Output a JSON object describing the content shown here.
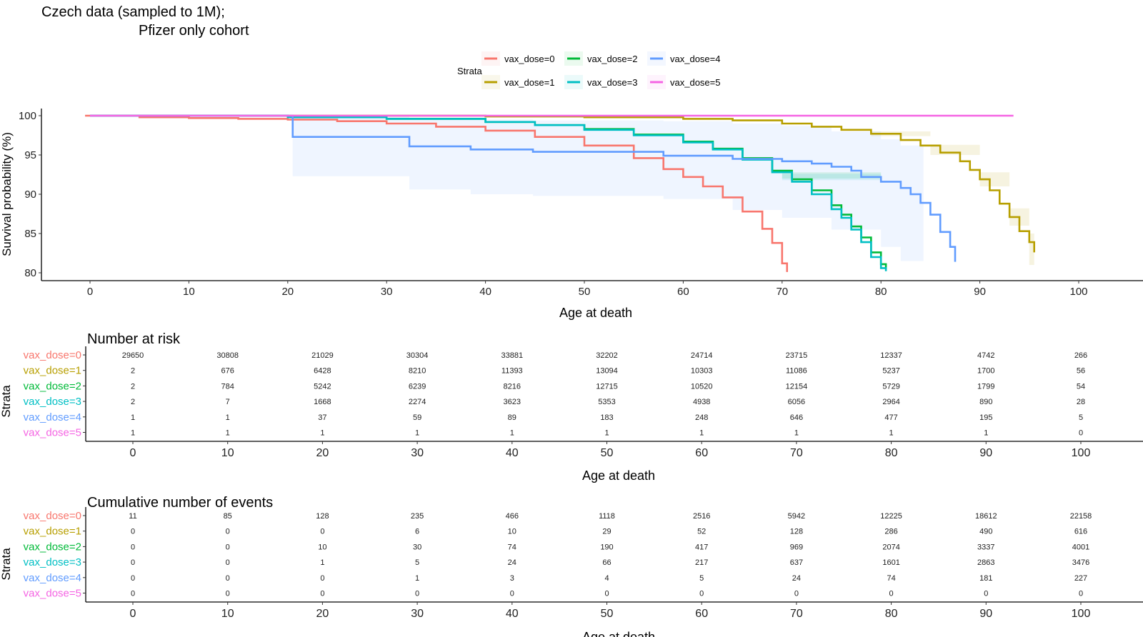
{
  "title_lines": [
    "Czech data (sampled to 1M);",
    "Pfizer only cohort"
  ],
  "legend": {
    "title": "Strata",
    "position": "top",
    "entries": [
      {
        "label": "vax_dose=0",
        "color": "#F8766D"
      },
      {
        "label": "vax_dose=1",
        "color": "#B79F00"
      },
      {
        "label": "vax_dose=2",
        "color": "#00BA38"
      },
      {
        "label": "vax_dose=3",
        "color": "#00BFC4"
      },
      {
        "label": "vax_dose=4",
        "color": "#619CFF"
      },
      {
        "label": "vax_dose=5",
        "color": "#F564E3"
      }
    ]
  },
  "chart_data": [
    {
      "type": "line",
      "subtype": "kaplan-meier step",
      "title": "",
      "xlabel": "Age at death",
      "ylabel": "Survival probability (%)",
      "xlim": [
        -5,
        104
      ],
      "ylim": [
        79.5,
        100.5
      ],
      "xticks": [
        0,
        10,
        20,
        30,
        40,
        50,
        60,
        70,
        80,
        90,
        100
      ],
      "yticks": [
        80,
        85,
        90,
        95,
        100
      ],
      "grid": false,
      "series": [
        {
          "name": "vax_dose=0",
          "color": "#F8766D",
          "points": [
            [
              -0.5,
              100
            ],
            [
              5,
              99.8
            ],
            [
              10,
              99.7
            ],
            [
              15,
              99.6
            ],
            [
              20,
              99.5
            ],
            [
              25,
              99.3
            ],
            [
              30,
              99.0
            ],
            [
              35,
              98.6
            ],
            [
              40,
              98.1
            ],
            [
              45,
              97.3
            ],
            [
              50,
              96.2
            ],
            [
              55,
              94.6
            ],
            [
              58,
              93.2
            ],
            [
              60,
              92.2
            ],
            [
              62,
              91.0
            ],
            [
              64,
              89.6
            ],
            [
              66,
              87.8
            ],
            [
              68,
              85.6
            ],
            [
              69,
              83.8
            ],
            [
              70,
              81.2
            ],
            [
              70.5,
              80.1
            ]
          ],
          "ci": null
        },
        {
          "name": "vax_dose=1",
          "color": "#B79F00",
          "points": [
            [
              0,
              100
            ],
            [
              20,
              100
            ],
            [
              40,
              99.9
            ],
            [
              50,
              99.8
            ],
            [
              60,
              99.6
            ],
            [
              65,
              99.4
            ],
            [
              70,
              99.0
            ],
            [
              73,
              98.6
            ],
            [
              76,
              98.2
            ],
            [
              79,
              97.7
            ],
            [
              82,
              96.9
            ],
            [
              84,
              96.2
            ],
            [
              86,
              95.3
            ],
            [
              88,
              94.2
            ],
            [
              89,
              93.1
            ],
            [
              90,
              91.9
            ],
            [
              91,
              90.5
            ],
            [
              92,
              88.8
            ],
            [
              93,
              87.1
            ],
            [
              94,
              85.3
            ],
            [
              95,
              83.9
            ],
            [
              95.5,
              82.6
            ]
          ],
          "ci": [
            [
              79,
              97.4,
              98.0
            ],
            [
              85,
              95.0,
              96.3
            ],
            [
              90,
              91.0,
              92.8
            ],
            [
              93,
              86.0,
              88.2
            ],
            [
              95,
              81.0,
              85.0
            ],
            [
              95.5,
              80.7,
              84.5
            ]
          ]
        },
        {
          "name": "vax_dose=2",
          "color": "#00BA38",
          "points": [
            [
              0,
              100
            ],
            [
              20,
              99.8
            ],
            [
              30,
              99.6
            ],
            [
              40,
              99.2
            ],
            [
              45,
              98.8
            ],
            [
              50,
              98.3
            ],
            [
              55,
              97.6
            ],
            [
              60,
              96.7
            ],
            [
              63,
              95.8
            ],
            [
              66,
              94.6
            ],
            [
              69,
              93.0
            ],
            [
              71,
              91.9
            ],
            [
              73,
              90.5
            ],
            [
              75,
              88.6
            ],
            [
              76,
              87.4
            ],
            [
              77,
              85.9
            ],
            [
              78,
              84.5
            ],
            [
              79,
              82.6
            ],
            [
              80,
              81.1
            ],
            [
              80.5,
              80.5
            ]
          ],
          "ci": [
            [
              70,
              92.0,
              92.8
            ],
            [
              80,
              80.8,
              81.6
            ]
          ]
        },
        {
          "name": "vax_dose=3",
          "color": "#00BFC4",
          "points": [
            [
              0,
              100
            ],
            [
              20,
              99.8
            ],
            [
              30,
              99.6
            ],
            [
              40,
              99.2
            ],
            [
              45,
              98.8
            ],
            [
              50,
              98.2
            ],
            [
              55,
              97.5
            ],
            [
              60,
              96.6
            ],
            [
              63,
              95.7
            ],
            [
              66,
              94.4
            ],
            [
              69,
              92.8
            ],
            [
              71,
              91.6
            ],
            [
              73,
              90.0
            ],
            [
              75,
              88.1
            ],
            [
              76,
              87.0
            ],
            [
              77,
              85.5
            ],
            [
              78,
              83.9
            ],
            [
              79,
              82.0
            ],
            [
              80,
              80.6
            ],
            [
              80.5,
              80.2
            ]
          ],
          "ci": [
            [
              70,
              91.8,
              92.6
            ],
            [
              80,
              80.3,
              81.0
            ]
          ]
        },
        {
          "name": "vax_dose=4",
          "color": "#619CFF",
          "points": [
            [
              0,
              100
            ],
            [
              20.5,
              100
            ],
            [
              20.5,
              97.3
            ],
            [
              32.3,
              97.3
            ],
            [
              32.3,
              96.1
            ],
            [
              38.5,
              96.1
            ],
            [
              38.5,
              95.7
            ],
            [
              44.8,
              95.7
            ],
            [
              44.8,
              95.4
            ],
            [
              58,
              95.4
            ],
            [
              58,
              94.9
            ],
            [
              65,
              94.5
            ],
            [
              70,
              94.2
            ],
            [
              73,
              93.9
            ],
            [
              75,
              93.5
            ],
            [
              77,
              93.0
            ],
            [
              78,
              92.2
            ],
            [
              80,
              91.6
            ],
            [
              82,
              90.8
            ],
            [
              83,
              90.0
            ],
            [
              84,
              88.9
            ],
            [
              85,
              87.4
            ],
            [
              86,
              85.2
            ],
            [
              87,
              83.3
            ],
            [
              87.5,
              81.4
            ]
          ],
          "ci": [
            [
              20.5,
              92.3,
              100
            ],
            [
              32.3,
              90.6,
              99.7
            ],
            [
              38.5,
              90.0,
              99.5
            ],
            [
              44.8,
              89.8,
              99.4
            ],
            [
              58,
              89.4,
              99.3
            ],
            [
              65,
              88.0,
              99.0
            ],
            [
              70,
              87.0,
              98.7
            ],
            [
              75,
              85.5,
              98.0
            ],
            [
              80,
              83.3,
              97.0
            ],
            [
              82,
              81.5,
              96.2
            ],
            [
              84.3,
              80.0,
              95.0
            ]
          ]
        },
        {
          "name": "vax_dose=5",
          "color": "#F564E3",
          "points": [
            [
              0,
              100
            ],
            [
              93.4,
              100
            ]
          ],
          "ci": null
        }
      ]
    },
    {
      "type": "table",
      "title": "Number at risk",
      "xlabel": "Age at death",
      "ylabel": "Strata",
      "x": [
        0,
        10,
        20,
        30,
        40,
        50,
        60,
        70,
        80,
        90,
        100
      ],
      "rows": [
        {
          "name": "vax_dose=0",
          "color": "#F8766D",
          "values": [
            "29650",
            "30808",
            "21029",
            "30304",
            "33881",
            "32202",
            "24714",
            "23715",
            "12337",
            "4742",
            "266"
          ]
        },
        {
          "name": "vax_dose=1",
          "color": "#B79F00",
          "values": [
            "2",
            "676",
            "6428",
            "8210",
            "11393",
            "13094",
            "10303",
            "11086",
            "5237",
            "1700",
            "56"
          ]
        },
        {
          "name": "vax_dose=2",
          "color": "#00BA38",
          "values": [
            "2",
            "784",
            "5242",
            "6239",
            "8216",
            "12715",
            "10520",
            "12154",
            "5729",
            "1799",
            "54"
          ]
        },
        {
          "name": "vax_dose=3",
          "color": "#00BFC4",
          "values": [
            "2",
            "7",
            "1668",
            "2274",
            "3623",
            "5353",
            "4938",
            "6056",
            "2964",
            "890",
            "28"
          ]
        },
        {
          "name": "vax_dose=4",
          "color": "#619CFF",
          "values": [
            "1",
            "1",
            "37",
            "59",
            "89",
            "183",
            "248",
            "646",
            "477",
            "195",
            "5"
          ]
        },
        {
          "name": "vax_dose=5",
          "color": "#F564E3",
          "values": [
            "1",
            "1",
            "1",
            "1",
            "1",
            "1",
            "1",
            "1",
            "1",
            "1",
            "0"
          ]
        }
      ]
    },
    {
      "type": "table",
      "title": "Cumulative number of events",
      "xlabel": "Age at death",
      "ylabel": "Strata",
      "x": [
        0,
        10,
        20,
        30,
        40,
        50,
        60,
        70,
        80,
        90,
        100
      ],
      "rows": [
        {
          "name": "vax_dose=0",
          "color": "#F8766D",
          "values": [
            "11",
            "85",
            "128",
            "235",
            "466",
            "1118",
            "2516",
            "5942",
            "12225",
            "18612",
            "22158"
          ]
        },
        {
          "name": "vax_dose=1",
          "color": "#B79F00",
          "values": [
            "0",
            "0",
            "0",
            "6",
            "10",
            "29",
            "52",
            "128",
            "286",
            "490",
            "616"
          ]
        },
        {
          "name": "vax_dose=2",
          "color": "#00BA38",
          "values": [
            "0",
            "0",
            "10",
            "30",
            "74",
            "190",
            "417",
            "969",
            "2074",
            "3337",
            "4001"
          ]
        },
        {
          "name": "vax_dose=3",
          "color": "#00BFC4",
          "values": [
            "0",
            "0",
            "1",
            "5",
            "24",
            "66",
            "217",
            "637",
            "1601",
            "2863",
            "3476"
          ]
        },
        {
          "name": "vax_dose=4",
          "color": "#619CFF",
          "values": [
            "0",
            "0",
            "0",
            "1",
            "3",
            "4",
            "5",
            "24",
            "74",
            "181",
            "227"
          ]
        },
        {
          "name": "vax_dose=5",
          "color": "#F564E3",
          "values": [
            "0",
            "0",
            "0",
            "0",
            "0",
            "0",
            "0",
            "0",
            "0",
            "0",
            "0"
          ]
        }
      ]
    }
  ]
}
